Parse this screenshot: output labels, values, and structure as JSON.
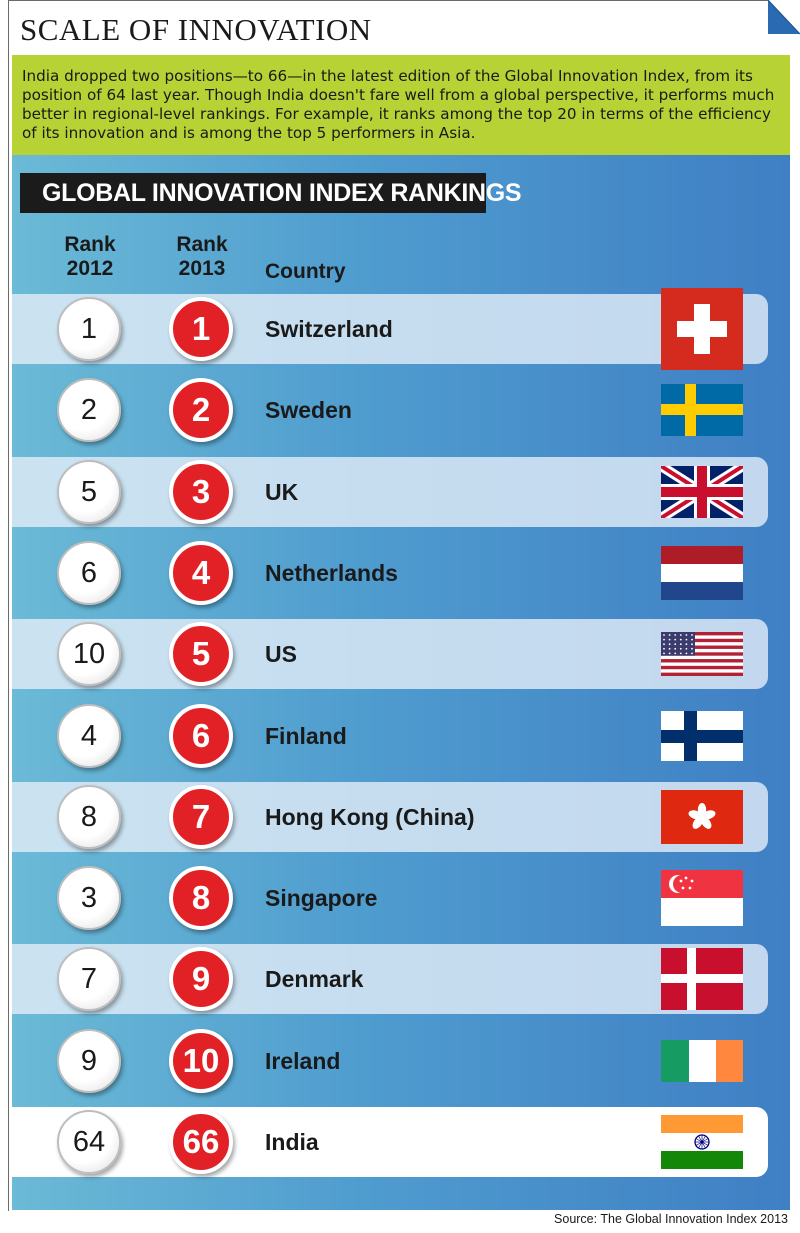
{
  "title": "SCALE OF INNOVATION",
  "intro": "India dropped two positions—to 66—in the latest edition of the Global Innovation Index, from its position of 64 last year. Though India doesn't fare well from a global perspective, it performs much better in regional-level rankings. For example, it ranks among the top 20 in terms of the efficiency of its innovation and is among the top 5 performers in Asia.",
  "banner": "GLOBAL INNOVATION INDEX RANKINGS",
  "columns": {
    "rank2012": "Rank\n2012",
    "rank2013": "Rank\n2013",
    "country": "Country"
  },
  "source": "Source: The Global Innovation Index 2013",
  "colors": {
    "intro_bg": "#b6d235",
    "panel_left": "#6bbad6",
    "panel_right": "#3f7fc4",
    "rank2013_circle": "#e22127",
    "banner_bg": "#1b1b1b"
  },
  "chart_data": {
    "type": "table",
    "title": "GLOBAL INNOVATION INDEX RANKINGS",
    "headers": [
      "Rank 2012",
      "Rank 2013",
      "Country"
    ],
    "rows": [
      {
        "rank2012": 1,
        "rank2013": 1,
        "country": "Switzerland",
        "flag": "switzerland-flag"
      },
      {
        "rank2012": 2,
        "rank2013": 2,
        "country": "Sweden",
        "flag": "sweden-flag"
      },
      {
        "rank2012": 5,
        "rank2013": 3,
        "country": "UK",
        "flag": "uk-flag"
      },
      {
        "rank2012": 6,
        "rank2013": 4,
        "country": "Netherlands",
        "flag": "netherlands-flag"
      },
      {
        "rank2012": 10,
        "rank2013": 5,
        "country": "US",
        "flag": "us-flag"
      },
      {
        "rank2012": 4,
        "rank2013": 6,
        "country": "Finland",
        "flag": "finland-flag"
      },
      {
        "rank2012": 8,
        "rank2013": 7,
        "country": "Hong Kong (China)",
        "flag": "hong-kong-flag"
      },
      {
        "rank2012": 3,
        "rank2013": 8,
        "country": "Singapore",
        "flag": "singapore-flag"
      },
      {
        "rank2012": 7,
        "rank2013": 9,
        "country": "Denmark",
        "flag": "denmark-flag"
      },
      {
        "rank2012": 9,
        "rank2013": 10,
        "country": "Ireland",
        "flag": "ireland-flag"
      },
      {
        "rank2012": 64,
        "rank2013": 66,
        "country": "India",
        "flag": "india-flag"
      }
    ]
  }
}
